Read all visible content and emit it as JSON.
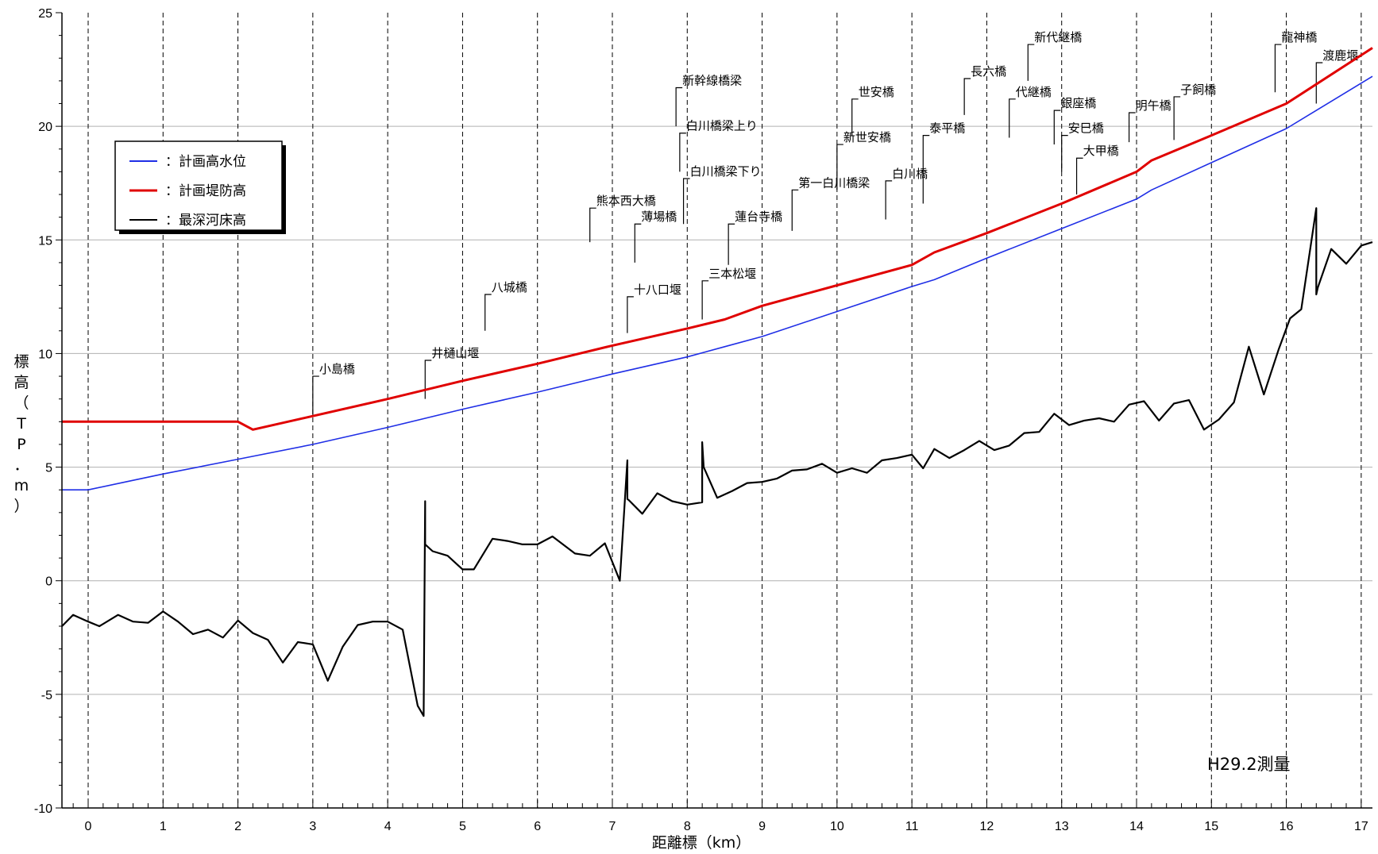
{
  "chart_data": {
    "type": "line",
    "ylabel": "標高（TP．m）",
    "xlabel": "距離標（km）",
    "xlim": [
      -0.35,
      17.15
    ],
    "ylim": [
      -10,
      25
    ],
    "x_ticks": [
      0,
      1,
      2,
      3,
      4,
      5,
      6,
      7,
      8,
      9,
      10,
      11,
      12,
      13,
      14,
      15,
      16,
      17
    ],
    "y_ticks": [
      -10,
      -5,
      0,
      5,
      10,
      15,
      20,
      25
    ],
    "grid": true,
    "legend_position": "top-left",
    "note": "H29.2測量",
    "series": [
      {
        "name": "計画高水位",
        "color": "#1f2ee6",
        "x": [
          -0.35,
          0,
          0.5,
          1,
          2,
          3,
          4,
          5,
          6,
          7,
          8,
          8.5,
          9,
          10,
          11,
          11.3,
          12,
          13,
          14,
          14.2,
          15,
          16,
          17.15
        ],
        "y": [
          4.0,
          4.0,
          4.35,
          4.7,
          5.35,
          6.0,
          6.75,
          7.55,
          8.3,
          9.1,
          9.85,
          10.3,
          10.75,
          11.85,
          12.95,
          13.25,
          14.2,
          15.5,
          16.8,
          17.2,
          18.4,
          19.9,
          22.2
        ]
      },
      {
        "name": "計画堤防高",
        "color": "#e00000",
        "x": [
          -0.35,
          2,
          2.2,
          3,
          4,
          5,
          6,
          7,
          8,
          8.5,
          9,
          10,
          11,
          11.3,
          12,
          13,
          14,
          14.2,
          15,
          16,
          17.15
        ],
        "y": [
          7.0,
          7.0,
          6.65,
          7.25,
          8.0,
          8.8,
          9.55,
          10.35,
          11.1,
          11.5,
          12.1,
          13.0,
          13.9,
          14.45,
          15.3,
          16.6,
          18.0,
          18.5,
          19.6,
          21.0,
          23.45
        ]
      },
      {
        "name": "最深河床高",
        "color": "#000000",
        "x": [
          -0.35,
          -0.2,
          0,
          0.15,
          0.4,
          0.6,
          0.8,
          1,
          1.2,
          1.4,
          1.6,
          1.8,
          2,
          2.2,
          2.4,
          2.6,
          2.8,
          3,
          3.2,
          3.4,
          3.6,
          3.8,
          4,
          4.2,
          4.4,
          4.48,
          4.5,
          4.5,
          4.6,
          4.8,
          5,
          5.15,
          5.4,
          5.6,
          5.8,
          6,
          6.2,
          6.5,
          6.7,
          6.9,
          7.1,
          7.2,
          7.2,
          7.22,
          7.4,
          7.6,
          7.8,
          8,
          8.2,
          8.2,
          8.22,
          8.4,
          8.6,
          8.8,
          9,
          9.2,
          9.4,
          9.6,
          9.8,
          10,
          10.2,
          10.4,
          10.6,
          10.8,
          11,
          11.15,
          11.3,
          11.5,
          11.7,
          11.9,
          12.1,
          12.3,
          12.5,
          12.7,
          12.9,
          13.1,
          13.3,
          13.5,
          13.7,
          13.9,
          14.1,
          14.3,
          14.5,
          14.7,
          14.9,
          15.1,
          15.3,
          15.5,
          15.7,
          15.9,
          16.05,
          16.2,
          16.4,
          16.4,
          16.42,
          16.6,
          16.8,
          17,
          17.15
        ],
        "y": [
          -2.0,
          -1.5,
          -1.8,
          -2.0,
          -1.5,
          -1.8,
          -1.85,
          -1.35,
          -1.8,
          -2.35,
          -2.15,
          -2.5,
          -1.75,
          -2.3,
          -2.6,
          -3.6,
          -2.7,
          -2.8,
          -4.4,
          -2.9,
          -1.95,
          -1.8,
          -1.8,
          -2.15,
          -5.5,
          -5.95,
          3.5,
          1.6,
          1.3,
          1.1,
          0.5,
          0.5,
          1.85,
          1.75,
          1.6,
          1.6,
          1.95,
          1.2,
          1.1,
          1.65,
          0.0,
          5.3,
          3.6,
          3.55,
          2.95,
          3.85,
          3.5,
          3.35,
          3.45,
          6.1,
          5.0,
          3.65,
          3.95,
          4.3,
          4.35,
          4.5,
          4.85,
          4.9,
          5.15,
          4.75,
          4.95,
          4.75,
          5.3,
          5.4,
          5.55,
          4.95,
          5.8,
          5.4,
          5.75,
          6.15,
          5.75,
          5.95,
          6.5,
          6.55,
          7.35,
          6.85,
          7.05,
          7.15,
          7.0,
          7.75,
          7.9,
          7.05,
          7.8,
          7.95,
          6.65,
          7.1,
          7.85,
          10.3,
          8.2,
          10.2,
          11.55,
          11.95,
          16.4,
          12.6,
          12.9,
          14.6,
          13.95,
          14.75,
          14.9
        ]
      }
    ],
    "annotations": [
      {
        "label": "小島橋",
        "x": 3.0,
        "y_end": 7.3,
        "y_label": 9.0
      },
      {
        "label": "井樋山堰",
        "x": 4.5,
        "y_end": 8.0,
        "y_label": 9.7
      },
      {
        "label": "八城橋",
        "x": 5.3,
        "y_end": 11.0,
        "y_label": 12.6
      },
      {
        "label": "熊本西大橋",
        "x": 6.7,
        "y_end": 14.9,
        "y_label": 16.4
      },
      {
        "label": "十八口堰",
        "x": 7.2,
        "y_end": 10.9,
        "y_label": 12.5
      },
      {
        "label": "薄場橋",
        "x": 7.3,
        "y_end": 14.0,
        "y_label": 15.7
      },
      {
        "label": "新幹線橋梁",
        "x": 7.85,
        "y_end": 20.0,
        "y_label": 21.7
      },
      {
        "label": "白川橋梁上り",
        "x": 7.9,
        "y_end": 18.0,
        "y_label": 19.7
      },
      {
        "label": "白川橋梁下り",
        "x": 7.95,
        "y_end": 15.7,
        "y_label": 17.7
      },
      {
        "label": "三本松堰",
        "x": 8.2,
        "y_end": 11.5,
        "y_label": 13.2
      },
      {
        "label": "蓮台寺橋",
        "x": 8.55,
        "y_end": 13.9,
        "y_label": 15.7
      },
      {
        "label": "第一白川橋梁",
        "x": 9.4,
        "y_end": 15.4,
        "y_label": 17.2
      },
      {
        "label": "世安橋",
        "x": 10.2,
        "y_end": 19.6,
        "y_label": 21.2
      },
      {
        "label": "新世安橋",
        "x": 10.0,
        "y_end": 17.2,
        "y_label": 19.2
      },
      {
        "label": "白川橋",
        "x": 10.65,
        "y_end": 15.9,
        "y_label": 17.6
      },
      {
        "label": "泰平橋",
        "x": 11.15,
        "y_end": 16.6,
        "y_label": 19.6
      },
      {
        "label": "長六橋",
        "x": 11.7,
        "y_end": 20.5,
        "y_label": 22.1
      },
      {
        "label": "新代継橋",
        "x": 12.55,
        "y_end": 22.0,
        "y_label": 23.6
      },
      {
        "label": "代継橋",
        "x": 12.3,
        "y_end": 19.5,
        "y_label": 21.2
      },
      {
        "label": "銀座橋",
        "x": 12.9,
        "y_end": 19.2,
        "y_label": 20.7
      },
      {
        "label": "安巳橋",
        "x": 13.0,
        "y_end": 18.0,
        "y_label": 19.6
      },
      {
        "label": "大甲橋",
        "x": 13.2,
        "y_end": 17.0,
        "y_label": 18.6
      },
      {
        "label": "明午橋",
        "x": 13.9,
        "y_end": 19.3,
        "y_label": 20.6
      },
      {
        "label": "子飼橋",
        "x": 14.5,
        "y_end": 19.4,
        "y_label": 21.3
      },
      {
        "label": "龍神橋",
        "x": 15.85,
        "y_end": 21.5,
        "y_label": 23.6
      },
      {
        "label": "渡鹿堰",
        "x": 16.4,
        "y_end": 21.0,
        "y_label": 22.8
      }
    ]
  }
}
